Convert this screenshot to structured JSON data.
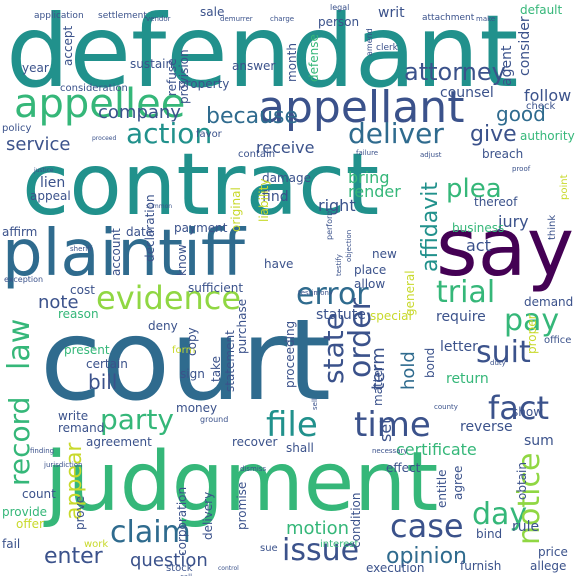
{
  "palette": {
    "dark_purple": "#440154",
    "blue": "#2f6b8e",
    "teal": "#21918c",
    "green": "#35b779",
    "lime": "#90d743",
    "yellow": "#c8d92b",
    "slate": "#3b528b"
  },
  "words": [
    {
      "text": "defendant",
      "color": "#21918c"
    },
    {
      "text": "contract",
      "color": "#21918c"
    },
    {
      "text": "court",
      "color": "#2f6b8e"
    },
    {
      "text": "judgment",
      "color": "#35b779"
    },
    {
      "text": "plaintiff",
      "color": "#2f6b8e"
    },
    {
      "text": "say",
      "color": "#440154"
    },
    {
      "text": "appellee",
      "color": "#35b779"
    },
    {
      "text": "appellant",
      "color": "#3b528b"
    },
    {
      "text": "evidence",
      "color": "#90d743"
    },
    {
      "text": "action",
      "color": "#21918c"
    },
    {
      "text": "deliver",
      "color": "#2f6b8e"
    },
    {
      "text": "error",
      "color": "#2f6b8e"
    },
    {
      "text": "trial",
      "color": "#35b779"
    },
    {
      "text": "pay",
      "color": "#35b779"
    },
    {
      "text": "suit",
      "color": "#3b528b"
    },
    {
      "text": "fact",
      "color": "#3b528b"
    },
    {
      "text": "time",
      "color": "#3b528b"
    },
    {
      "text": "file",
      "color": "#21918c"
    },
    {
      "text": "party",
      "color": "#35b779"
    },
    {
      "text": "case",
      "color": "#3b528b"
    },
    {
      "text": "claim",
      "color": "#2f6b8e"
    },
    {
      "text": "issue",
      "color": "#3b528b"
    },
    {
      "text": "day",
      "color": "#35b779"
    },
    {
      "text": "notice",
      "color": "#90d743"
    },
    {
      "text": "record",
      "color": "#35b779"
    },
    {
      "text": "law",
      "color": "#35b779"
    },
    {
      "text": "order",
      "color": "#3b528b"
    },
    {
      "text": "state",
      "color": "#3b528b"
    },
    {
      "text": "attorney",
      "color": "#3b528b"
    },
    {
      "text": "because",
      "color": "#2f6b8e"
    },
    {
      "text": "company",
      "color": "#3b528b"
    },
    {
      "text": "good",
      "color": "#2f6b8e"
    },
    {
      "text": "give",
      "color": "#3b528b"
    },
    {
      "text": "plea",
      "color": "#35b779"
    },
    {
      "text": "affidavit",
      "color": "#21918c"
    },
    {
      "text": "service",
      "color": "#3b528b"
    },
    {
      "text": "receive",
      "color": "#3b528b"
    },
    {
      "text": "bring",
      "color": "#35b779"
    },
    {
      "text": "right",
      "color": "#3b528b"
    },
    {
      "text": "render",
      "color": "#35b779"
    },
    {
      "text": "appear",
      "color": "#c8d92b"
    },
    {
      "text": "enter",
      "color": "#3b528b"
    },
    {
      "text": "question",
      "color": "#3b528b"
    },
    {
      "text": "opinion",
      "color": "#2f6b8e"
    },
    {
      "text": "motion",
      "color": "#35b779"
    },
    {
      "text": "bill",
      "color": "#3b528b"
    },
    {
      "text": "note",
      "color": "#3b528b"
    },
    {
      "text": "term",
      "color": "#3b528b"
    },
    {
      "text": "hold",
      "color": "#2f6b8e"
    },
    {
      "text": "set",
      "color": "#3b528b"
    },
    {
      "text": "jury",
      "color": "#3b528b"
    },
    {
      "text": "act",
      "color": "#3b528b"
    },
    {
      "text": "follow",
      "color": "#3b528b"
    },
    {
      "text": "counsel",
      "color": "#3b528b"
    },
    {
      "text": "agent",
      "color": "#3b528b"
    },
    {
      "text": "consider",
      "color": "#3b528b"
    },
    {
      "text": "contain",
      "color": "#3b528b"
    },
    {
      "text": "sustain",
      "color": "#3b528b"
    },
    {
      "text": "refuse",
      "color": "#3b528b"
    },
    {
      "text": "provision",
      "color": "#3b528b"
    },
    {
      "text": "answer",
      "color": "#3b528b"
    },
    {
      "text": "writ",
      "color": "#3b528b"
    },
    {
      "text": "person",
      "color": "#3b528b"
    },
    {
      "text": "sale",
      "color": "#3b528b"
    },
    {
      "text": "default",
      "color": "#35b779"
    },
    {
      "text": "year",
      "color": "#3b528b"
    },
    {
      "text": "consideration",
      "color": "#3b528b"
    },
    {
      "text": "policy",
      "color": "#3b528b"
    },
    {
      "text": "lien",
      "color": "#3b528b"
    },
    {
      "text": "appeal",
      "color": "#3b528b"
    },
    {
      "text": "affirm",
      "color": "#3b528b"
    },
    {
      "text": "date",
      "color": "#3b528b"
    },
    {
      "text": "payment",
      "color": "#3b528b"
    },
    {
      "text": "have",
      "color": "#3b528b"
    },
    {
      "text": "find",
      "color": "#3b528b"
    },
    {
      "text": "damage",
      "color": "#3b528b"
    },
    {
      "text": "declaration",
      "color": "#3b528b"
    },
    {
      "text": "sufficient",
      "color": "#3b528b"
    },
    {
      "text": "place",
      "color": "#3b528b"
    },
    {
      "text": "allow",
      "color": "#3b528b"
    },
    {
      "text": "new",
      "color": "#3b528b"
    },
    {
      "text": "business",
      "color": "#35b779"
    },
    {
      "text": "thereof",
      "color": "#3b528b"
    },
    {
      "text": "statute",
      "color": "#3b528b"
    },
    {
      "text": "require",
      "color": "#3b528b"
    },
    {
      "text": "demand",
      "color": "#3b528b"
    },
    {
      "text": "proper",
      "color": "#c8d92b"
    },
    {
      "text": "special",
      "color": "#c8d92b"
    },
    {
      "text": "general",
      "color": "#c8d92b"
    },
    {
      "text": "letter",
      "color": "#3b528b"
    },
    {
      "text": "bond",
      "color": "#3b528b"
    },
    {
      "text": "return",
      "color": "#35b779"
    },
    {
      "text": "show",
      "color": "#3b528b"
    },
    {
      "text": "reverse",
      "color": "#3b528b"
    },
    {
      "text": "sum",
      "color": "#3b528b"
    },
    {
      "text": "certificate",
      "color": "#35b779"
    },
    {
      "text": "effect",
      "color": "#3b528b"
    },
    {
      "text": "entitle",
      "color": "#3b528b"
    },
    {
      "text": "agree",
      "color": "#3b528b"
    },
    {
      "text": "obtain",
      "color": "#3b528b"
    },
    {
      "text": "bind",
      "color": "#3b528b"
    },
    {
      "text": "rule",
      "color": "#3b528b"
    },
    {
      "text": "price",
      "color": "#3b528b"
    },
    {
      "text": "allege",
      "color": "#3b528b"
    },
    {
      "text": "furnish",
      "color": "#3b528b"
    },
    {
      "text": "execution",
      "color": "#3b528b"
    },
    {
      "text": "interest",
      "color": "#35b779"
    },
    {
      "text": "sue",
      "color": "#3b528b"
    },
    {
      "text": "stock",
      "color": "#3b528b"
    },
    {
      "text": "work",
      "color": "#c8d92b"
    },
    {
      "text": "fail",
      "color": "#3b528b"
    },
    {
      "text": "offer",
      "color": "#c8d92b"
    },
    {
      "text": "provide",
      "color": "#35b779"
    },
    {
      "text": "count",
      "color": "#3b528b"
    },
    {
      "text": "write",
      "color": "#3b528b"
    },
    {
      "text": "remand",
      "color": "#3b528b"
    },
    {
      "text": "agreement",
      "color": "#3b528b"
    },
    {
      "text": "recover",
      "color": "#3b528b"
    },
    {
      "text": "shall",
      "color": "#3b528b"
    },
    {
      "text": "money",
      "color": "#3b528b"
    },
    {
      "text": "present",
      "color": "#35b779"
    },
    {
      "text": "certain",
      "color": "#3b528b"
    },
    {
      "text": "reason",
      "color": "#35b779"
    },
    {
      "text": "deny",
      "color": "#3b528b"
    },
    {
      "text": "cost",
      "color": "#3b528b"
    },
    {
      "text": "sign",
      "color": "#3b528b"
    },
    {
      "text": "take",
      "color": "#3b528b"
    },
    {
      "text": "statement",
      "color": "#3b528b"
    },
    {
      "text": "proceeding",
      "color": "#3b528b"
    },
    {
      "text": "matter",
      "color": "#3b528b"
    },
    {
      "text": "promise",
      "color": "#3b528b"
    },
    {
      "text": "delivery",
      "color": "#3b528b"
    },
    {
      "text": "corporation",
      "color": "#3b528b"
    },
    {
      "text": "prove",
      "color": "#3b528b"
    },
    {
      "text": "condition",
      "color": "#3b528b"
    },
    {
      "text": "value",
      "color": "#3b528b"
    },
    {
      "text": "material",
      "color": "#3b528b"
    },
    {
      "text": "serve",
      "color": "#3b528b"
    },
    {
      "text": "copy",
      "color": "#3b528b"
    },
    {
      "text": "purchase",
      "color": "#c8d92b"
    },
    {
      "text": "office",
      "color": "#c8d92b"
    },
    {
      "text": "favor",
      "color": "#3b528b"
    },
    {
      "text": "breach",
      "color": "#35b779"
    },
    {
      "text": "property",
      "color": "#35b779"
    },
    {
      "text": "original",
      "color": "#3b528b"
    },
    {
      "text": "liability",
      "color": "#3b528b"
    },
    {
      "text": "check",
      "color": "#3b528b"
    },
    {
      "text": "authority",
      "color": "#3b528b"
    },
    {
      "text": "defense",
      "color": "#3b528b"
    },
    {
      "text": "month",
      "color": "#3b528b"
    },
    {
      "text": "accept",
      "color": "#3b528b"
    },
    {
      "text": "know",
      "color": "#c8d92b"
    },
    {
      "text": "account",
      "color": "#3b528b"
    },
    {
      "text": "exception",
      "color": "#c8d92b"
    },
    {
      "text": "form",
      "color": "#3b528b"
    },
    {
      "text": "think",
      "color": "#3b528b"
    },
    {
      "text": "point",
      "color": "#3b528b"
    },
    {
      "text": "application",
      "color": "#3b528b"
    },
    {
      "text": "settlement",
      "color": "#3b528b"
    },
    {
      "text": "vendor",
      "color": "#3b528b"
    },
    {
      "text": "demurrer",
      "color": "#3b528b"
    },
    {
      "text": "charge",
      "color": "#3b528b"
    },
    {
      "text": "legal",
      "color": "#3b528b"
    },
    {
      "text": "attachment",
      "color": "#3b528b"
    },
    {
      "text": "make",
      "color": "#3b528b"
    },
    {
      "text": "amend",
      "color": "#3b528b"
    },
    {
      "text": "clerk",
      "color": "#3b528b"
    },
    {
      "text": "proceed",
      "color": "#3b528b"
    },
    {
      "text": "failure",
      "color": "#3b528b"
    },
    {
      "text": "adjust",
      "color": "#3b528b"
    },
    {
      "text": "proof",
      "color": "#3b528b"
    },
    {
      "text": "justice",
      "color": "#3b528b"
    },
    {
      "text": "summon",
      "color": "#3b528b"
    },
    {
      "text": "perform",
      "color": "#3b528b"
    },
    {
      "text": "objection",
      "color": "#3b528b"
    },
    {
      "text": "testify",
      "color": "#3b528b"
    },
    {
      "text": "testimony",
      "color": "#3b528b"
    },
    {
      "text": "duty",
      "color": "#3b528b"
    },
    {
      "text": "county",
      "color": "#3b528b"
    },
    {
      "text": "finding",
      "color": "#3b528b"
    },
    {
      "text": "jurisdiction",
      "color": "#3b528b"
    },
    {
      "text": "necessary",
      "color": "#3b528b"
    },
    {
      "text": "sell",
      "color": "#3b528b"
    },
    {
      "text": "call",
      "color": "#3b528b"
    },
    {
      "text": "control",
      "color": "#3b528b"
    },
    {
      "text": "dismiss",
      "color": "#3b528b"
    },
    {
      "text": "ground",
      "color": "#3b528b"
    },
    {
      "text": "sheriff",
      "color": "#3b528b"
    }
  ]
}
